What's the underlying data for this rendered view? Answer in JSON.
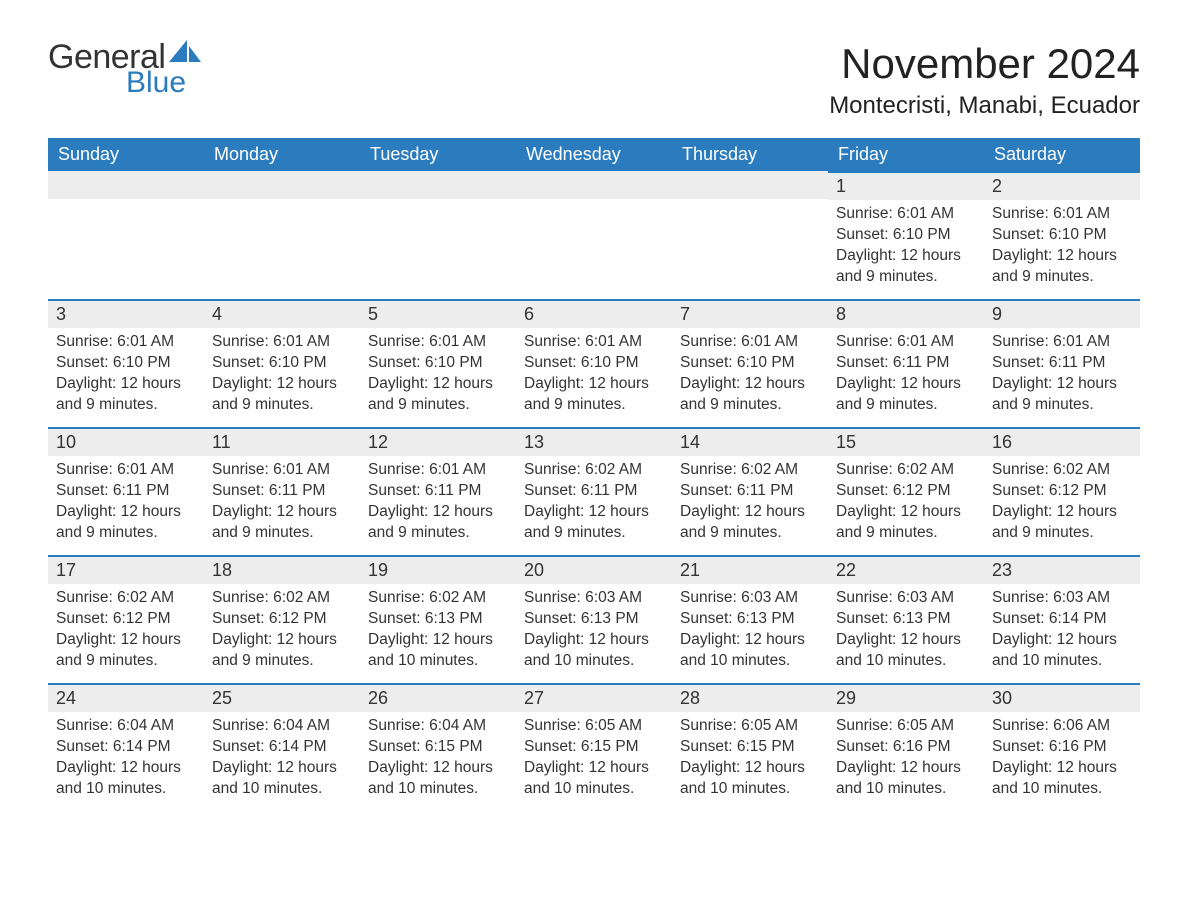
{
  "logo": {
    "word1": "General",
    "word2": "Blue",
    "word1_color": "#333333",
    "word2_color": "#2b7bbf",
    "sail_color": "#2b7bbf"
  },
  "title": "November 2024",
  "location": "Montecristi, Manabi, Ecuador",
  "colors": {
    "header_bg": "#2b7bbf",
    "header_text": "#ffffff",
    "daynum_bg": "#ededed",
    "border_top": "#2b7bbf",
    "body_text": "#333333",
    "page_bg": "#ffffff"
  },
  "weekdays": [
    "Sunday",
    "Monday",
    "Tuesday",
    "Wednesday",
    "Thursday",
    "Friday",
    "Saturday"
  ],
  "weeks": [
    [
      null,
      null,
      null,
      null,
      null,
      {
        "num": "1",
        "sunrise": "Sunrise: 6:01 AM",
        "sunset": "Sunset: 6:10 PM",
        "daylight": "Daylight: 12 hours and 9 minutes."
      },
      {
        "num": "2",
        "sunrise": "Sunrise: 6:01 AM",
        "sunset": "Sunset: 6:10 PM",
        "daylight": "Daylight: 12 hours and 9 minutes."
      }
    ],
    [
      {
        "num": "3",
        "sunrise": "Sunrise: 6:01 AM",
        "sunset": "Sunset: 6:10 PM",
        "daylight": "Daylight: 12 hours and 9 minutes."
      },
      {
        "num": "4",
        "sunrise": "Sunrise: 6:01 AM",
        "sunset": "Sunset: 6:10 PM",
        "daylight": "Daylight: 12 hours and 9 minutes."
      },
      {
        "num": "5",
        "sunrise": "Sunrise: 6:01 AM",
        "sunset": "Sunset: 6:10 PM",
        "daylight": "Daylight: 12 hours and 9 minutes."
      },
      {
        "num": "6",
        "sunrise": "Sunrise: 6:01 AM",
        "sunset": "Sunset: 6:10 PM",
        "daylight": "Daylight: 12 hours and 9 minutes."
      },
      {
        "num": "7",
        "sunrise": "Sunrise: 6:01 AM",
        "sunset": "Sunset: 6:10 PM",
        "daylight": "Daylight: 12 hours and 9 minutes."
      },
      {
        "num": "8",
        "sunrise": "Sunrise: 6:01 AM",
        "sunset": "Sunset: 6:11 PM",
        "daylight": "Daylight: 12 hours and 9 minutes."
      },
      {
        "num": "9",
        "sunrise": "Sunrise: 6:01 AM",
        "sunset": "Sunset: 6:11 PM",
        "daylight": "Daylight: 12 hours and 9 minutes."
      }
    ],
    [
      {
        "num": "10",
        "sunrise": "Sunrise: 6:01 AM",
        "sunset": "Sunset: 6:11 PM",
        "daylight": "Daylight: 12 hours and 9 minutes."
      },
      {
        "num": "11",
        "sunrise": "Sunrise: 6:01 AM",
        "sunset": "Sunset: 6:11 PM",
        "daylight": "Daylight: 12 hours and 9 minutes."
      },
      {
        "num": "12",
        "sunrise": "Sunrise: 6:01 AM",
        "sunset": "Sunset: 6:11 PM",
        "daylight": "Daylight: 12 hours and 9 minutes."
      },
      {
        "num": "13",
        "sunrise": "Sunrise: 6:02 AM",
        "sunset": "Sunset: 6:11 PM",
        "daylight": "Daylight: 12 hours and 9 minutes."
      },
      {
        "num": "14",
        "sunrise": "Sunrise: 6:02 AM",
        "sunset": "Sunset: 6:11 PM",
        "daylight": "Daylight: 12 hours and 9 minutes."
      },
      {
        "num": "15",
        "sunrise": "Sunrise: 6:02 AM",
        "sunset": "Sunset: 6:12 PM",
        "daylight": "Daylight: 12 hours and 9 minutes."
      },
      {
        "num": "16",
        "sunrise": "Sunrise: 6:02 AM",
        "sunset": "Sunset: 6:12 PM",
        "daylight": "Daylight: 12 hours and 9 minutes."
      }
    ],
    [
      {
        "num": "17",
        "sunrise": "Sunrise: 6:02 AM",
        "sunset": "Sunset: 6:12 PM",
        "daylight": "Daylight: 12 hours and 9 minutes."
      },
      {
        "num": "18",
        "sunrise": "Sunrise: 6:02 AM",
        "sunset": "Sunset: 6:12 PM",
        "daylight": "Daylight: 12 hours and 9 minutes."
      },
      {
        "num": "19",
        "sunrise": "Sunrise: 6:02 AM",
        "sunset": "Sunset: 6:13 PM",
        "daylight": "Daylight: 12 hours and 10 minutes."
      },
      {
        "num": "20",
        "sunrise": "Sunrise: 6:03 AM",
        "sunset": "Sunset: 6:13 PM",
        "daylight": "Daylight: 12 hours and 10 minutes."
      },
      {
        "num": "21",
        "sunrise": "Sunrise: 6:03 AM",
        "sunset": "Sunset: 6:13 PM",
        "daylight": "Daylight: 12 hours and 10 minutes."
      },
      {
        "num": "22",
        "sunrise": "Sunrise: 6:03 AM",
        "sunset": "Sunset: 6:13 PM",
        "daylight": "Daylight: 12 hours and 10 minutes."
      },
      {
        "num": "23",
        "sunrise": "Sunrise: 6:03 AM",
        "sunset": "Sunset: 6:14 PM",
        "daylight": "Daylight: 12 hours and 10 minutes."
      }
    ],
    [
      {
        "num": "24",
        "sunrise": "Sunrise: 6:04 AM",
        "sunset": "Sunset: 6:14 PM",
        "daylight": "Daylight: 12 hours and 10 minutes."
      },
      {
        "num": "25",
        "sunrise": "Sunrise: 6:04 AM",
        "sunset": "Sunset: 6:14 PM",
        "daylight": "Daylight: 12 hours and 10 minutes."
      },
      {
        "num": "26",
        "sunrise": "Sunrise: 6:04 AM",
        "sunset": "Sunset: 6:15 PM",
        "daylight": "Daylight: 12 hours and 10 minutes."
      },
      {
        "num": "27",
        "sunrise": "Sunrise: 6:05 AM",
        "sunset": "Sunset: 6:15 PM",
        "daylight": "Daylight: 12 hours and 10 minutes."
      },
      {
        "num": "28",
        "sunrise": "Sunrise: 6:05 AM",
        "sunset": "Sunset: 6:15 PM",
        "daylight": "Daylight: 12 hours and 10 minutes."
      },
      {
        "num": "29",
        "sunrise": "Sunrise: 6:05 AM",
        "sunset": "Sunset: 6:16 PM",
        "daylight": "Daylight: 12 hours and 10 minutes."
      },
      {
        "num": "30",
        "sunrise": "Sunrise: 6:06 AM",
        "sunset": "Sunset: 6:16 PM",
        "daylight": "Daylight: 12 hours and 10 minutes."
      }
    ]
  ]
}
